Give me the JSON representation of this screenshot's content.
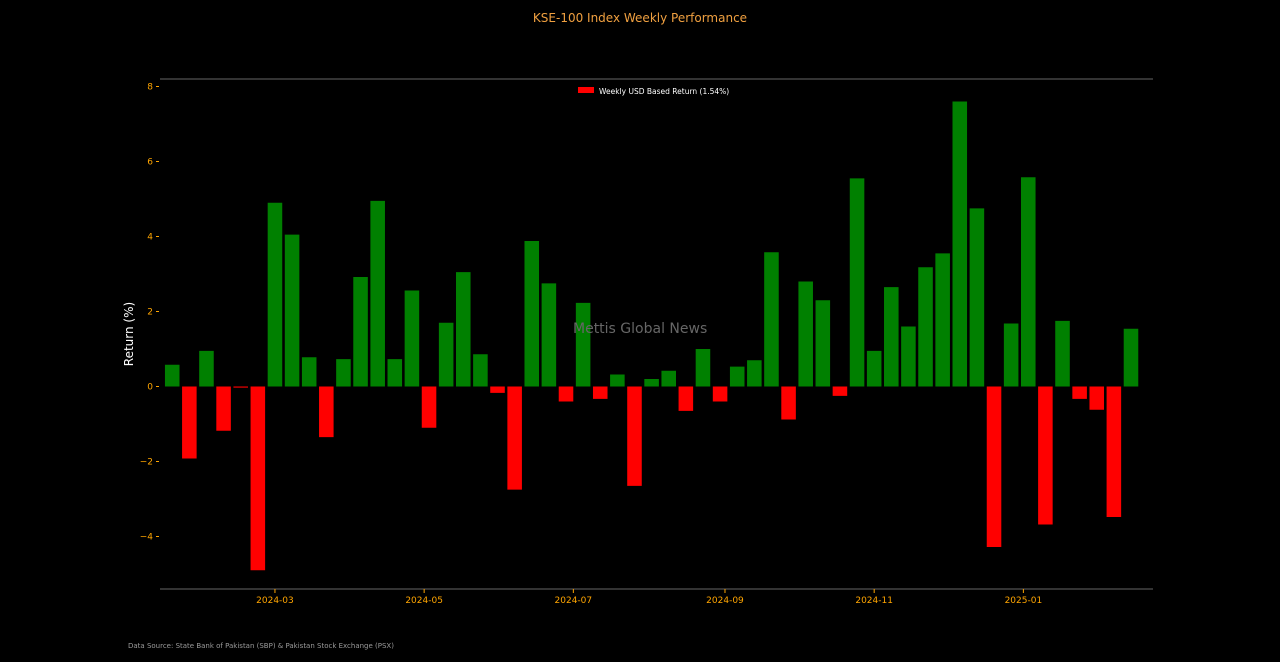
{
  "colors": {
    "positive": "#008000",
    "negative": "#ff0000",
    "axis": "#ffa500",
    "background": "#000000"
  },
  "chart_data": {
    "type": "bar",
    "title": "KSE-100 Index Weekly Performance",
    "ylabel": "Return (%)",
    "xlabel": "",
    "ylim": [
      -5.4,
      8.2
    ],
    "yticks": [
      -4,
      -2,
      0,
      2,
      4,
      6,
      8
    ],
    "xrange": [
      "2024-01-14",
      "2025-02-23"
    ],
    "xticks": [
      "2024-03",
      "2024-05",
      "2024-07",
      "2024-09",
      "2024-11",
      "2025-01"
    ],
    "xtick_dates": [
      "2024-03-01",
      "2024-05-01",
      "2024-07-01",
      "2024-09-01",
      "2024-11-01",
      "2025-01-01"
    ],
    "legend": {
      "label": "Weekly USD Based Return (1.54%)",
      "placement": "top-center"
    },
    "series": [
      {
        "name": "Weekly USD Based Return (1.54%)",
        "dates": [
          "2024-01-19",
          "2024-01-26",
          "2024-02-02",
          "2024-02-09",
          "2024-02-16",
          "2024-02-23",
          "2024-03-01",
          "2024-03-08",
          "2024-03-15",
          "2024-03-22",
          "2024-03-29",
          "2024-04-05",
          "2024-04-12",
          "2024-04-19",
          "2024-04-26",
          "2024-05-03",
          "2024-05-10",
          "2024-05-17",
          "2024-05-24",
          "2024-05-31",
          "2024-06-07",
          "2024-06-14",
          "2024-06-21",
          "2024-06-28",
          "2024-07-05",
          "2024-07-12",
          "2024-07-19",
          "2024-07-26",
          "2024-08-02",
          "2024-08-09",
          "2024-08-16",
          "2024-08-23",
          "2024-08-30",
          "2024-09-06",
          "2024-09-13",
          "2024-09-20",
          "2024-09-27",
          "2024-10-04",
          "2024-10-11",
          "2024-10-18",
          "2024-10-25",
          "2024-11-01",
          "2024-11-08",
          "2024-11-15",
          "2024-11-22",
          "2024-11-29",
          "2024-12-06",
          "2024-12-13",
          "2024-12-20",
          "2024-12-27",
          "2025-01-03",
          "2025-01-10",
          "2025-01-17",
          "2025-01-24",
          "2025-01-31",
          "2025-02-07",
          "2025-02-14"
        ],
        "values": [
          0.58,
          -1.92,
          0.95,
          -1.18,
          -0.03,
          -4.9,
          4.9,
          4.05,
          0.78,
          -1.35,
          0.73,
          2.92,
          4.95,
          0.73,
          2.56,
          -1.1,
          1.7,
          3.05,
          0.86,
          -0.17,
          -2.75,
          3.88,
          2.75,
          -0.4,
          2.23,
          -0.33,
          0.32,
          -2.65,
          0.2,
          0.42,
          -0.65,
          1.0,
          -0.4,
          0.53,
          0.7,
          3.58,
          -0.88,
          2.8,
          2.3,
          -0.25,
          5.55,
          0.95,
          2.65,
          1.6,
          3.18,
          3.55,
          7.6,
          4.75,
          -4.28,
          1.68,
          5.58,
          -3.68,
          1.75,
          -0.33,
          -0.62,
          -3.48,
          1.54
        ]
      }
    ]
  },
  "footer": {
    "source": "Data Source: State Bank of Pakistan (SBP) & Pakistan Stock Exchange (PSX)"
  },
  "watermark": "Mettis Global News"
}
